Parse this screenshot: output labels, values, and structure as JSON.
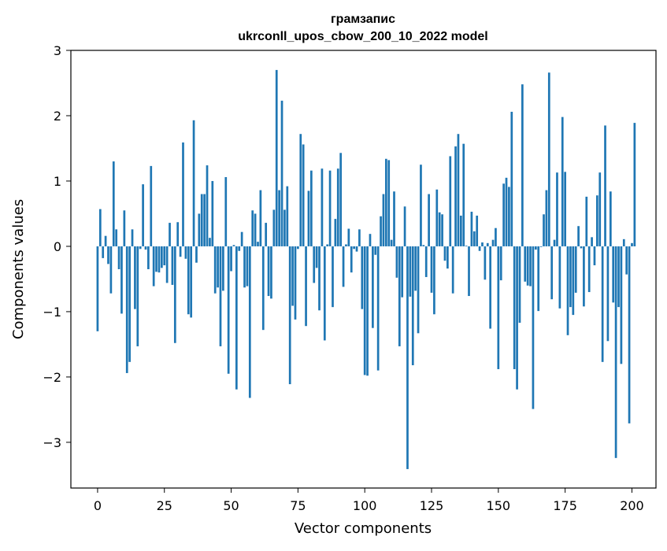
{
  "chart_data": {
    "type": "bar",
    "title_line1": "грамзапис",
    "title_line2": "ukrconll_upos_cbow_200_10_2022 model",
    "xlabel": "Vector components",
    "ylabel": "Components values",
    "xlim": [
      -10,
      209
    ],
    "ylim": [
      -3.7,
      3.0
    ],
    "xticks": [
      0,
      25,
      50,
      75,
      100,
      125,
      150,
      175,
      200
    ],
    "yticks": [
      -3,
      -2,
      -1,
      0,
      1,
      2,
      3
    ],
    "ytick_labels": [
      "−3",
      "−2",
      "−1",
      "0",
      "1",
      "2",
      "3"
    ],
    "bar_color": "#1f77b4",
    "values": [
      -1.3,
      0.57,
      -0.18,
      0.16,
      -0.27,
      -0.72,
      1.3,
      0.26,
      -0.35,
      -1.03,
      0.55,
      -1.94,
      -1.77,
      0.26,
      -0.96,
      -1.53,
      -0.04,
      0.95,
      -0.05,
      -0.35,
      1.23,
      -0.61,
      -0.39,
      -0.4,
      -0.33,
      -0.29,
      -0.56,
      0.36,
      -0.59,
      -1.48,
      0.37,
      -0.16,
      1.59,
      -0.19,
      -1.04,
      -1.09,
      1.93,
      -0.25,
      0.5,
      0.8,
      0.8,
      1.24,
      0.13,
      1.0,
      -0.72,
      -0.63,
      -1.53,
      -0.68,
      1.06,
      -1.95,
      -0.38,
      0.02,
      -2.19,
      -0.07,
      0.22,
      -0.63,
      -0.61,
      -2.32,
      0.55,
      0.5,
      0.07,
      0.86,
      -1.28,
      0.36,
      -0.76,
      -0.8,
      0.56,
      2.7,
      0.86,
      2.23,
      0.56,
      0.92,
      -2.11,
      -0.91,
      -1.12,
      -0.04,
      1.72,
      1.56,
      -1.22,
      0.85,
      1.16,
      -0.56,
      -0.33,
      -0.98,
      1.19,
      -1.44,
      0.03,
      1.16,
      -0.93,
      0.42,
      1.19,
      1.43,
      -0.62,
      0.03,
      0.27,
      -0.4,
      -0.04,
      -0.08,
      0.26,
      -0.96,
      -1.97,
      -1.98,
      0.19,
      -1.25,
      -0.13,
      -1.9,
      0.46,
      0.8,
      1.34,
      1.32,
      0.1,
      0.84,
      -0.48,
      -1.53,
      -0.78,
      0.61,
      -3.41,
      -0.77,
      -1.82,
      -0.68,
      -1.33,
      1.25,
      0.02,
      -0.47,
      0.8,
      -0.71,
      -1.04,
      0.87,
      0.52,
      0.49,
      -0.22,
      -0.34,
      1.38,
      -0.72,
      1.53,
      1.72,
      0.47,
      1.57,
      0.01,
      -0.76,
      0.53,
      0.23,
      0.47,
      -0.07,
      0.06,
      -0.51,
      0.05,
      -1.26,
      0.1,
      0.28,
      -1.88,
      -0.52,
      0.96,
      1.05,
      0.91,
      2.06,
      -1.88,
      -2.19,
      -1.17,
      2.48,
      -0.54,
      -0.6,
      -0.61,
      -2.49,
      -0.05,
      -0.99,
      -0.01,
      0.49,
      0.86,
      2.66,
      -0.81,
      0.1,
      1.13,
      -0.95,
      1.98,
      1.14,
      -1.36,
      -0.93,
      -1.05,
      -0.71,
      0.31,
      -0.03,
      -0.92,
      0.76,
      -0.7,
      0.14,
      -0.29,
      0.78,
      1.13,
      -1.77,
      1.85,
      -1.45,
      0.84,
      -0.86,
      -3.24,
      -0.93,
      -1.8,
      0.11,
      -0.43,
      -2.71,
      0.05,
      1.89
    ]
  }
}
